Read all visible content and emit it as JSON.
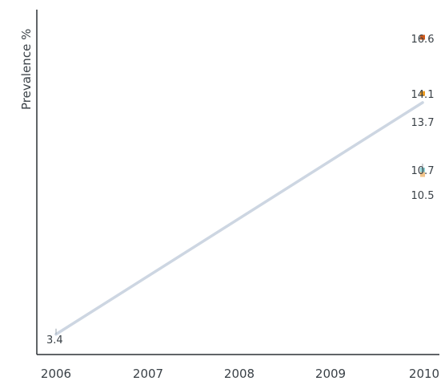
{
  "chart_data": {
    "type": "line",
    "ylabel": "Prevalence %",
    "xlabel": "",
    "x_ticks": [
      "2006",
      "2007",
      "2008",
      "2009",
      "2010"
    ],
    "xlim": [
      2006,
      2010
    ],
    "ylim": [
      2.5,
      19.0
    ],
    "grid": false,
    "series": [
      {
        "color": "#cdd6e2",
        "points": [
          {
            "x": 2006,
            "y": 3.4,
            "label": "3.4"
          },
          {
            "x": 2010,
            "y": 13.7,
            "label": "13.7"
          }
        ]
      },
      {
        "color": "#d3591a",
        "points": [
          {
            "x": 2010,
            "y": 16.6,
            "label": "16.6"
          }
        ]
      },
      {
        "color": "#ec9a1e",
        "points": [
          {
            "x": 2010,
            "y": 14.1,
            "label": "14.1"
          }
        ]
      },
      {
        "color": "#8ccfd2",
        "points": [
          {
            "x": 2010,
            "y": 10.7,
            "label": "10.7"
          }
        ]
      },
      {
        "color": "#f2c48a",
        "points": [
          {
            "x": 2010,
            "y": 10.5,
            "label": "10.5"
          }
        ]
      }
    ]
  }
}
